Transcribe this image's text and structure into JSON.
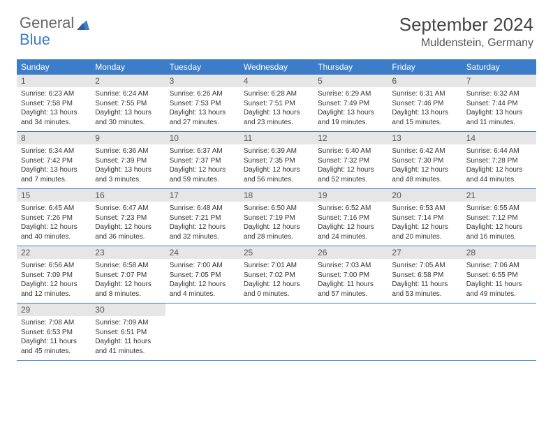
{
  "logo": {
    "text1": "General",
    "text2": "Blue"
  },
  "title": "September 2024",
  "location": "Muldenstein, Germany",
  "colors": {
    "header_bg": "#3d7cc9",
    "daynum_bg": "#e6e6e6",
    "week_border": "#3d7cc9",
    "logo_blue": "#3d7cc9"
  },
  "weekdays": [
    "Sunday",
    "Monday",
    "Tuesday",
    "Wednesday",
    "Thursday",
    "Friday",
    "Saturday"
  ],
  "weeks": [
    [
      {
        "num": "1",
        "sunrise": "Sunrise: 6:23 AM",
        "sunset": "Sunset: 7:58 PM",
        "daylight": "Daylight: 13 hours and 34 minutes."
      },
      {
        "num": "2",
        "sunrise": "Sunrise: 6:24 AM",
        "sunset": "Sunset: 7:55 PM",
        "daylight": "Daylight: 13 hours and 30 minutes."
      },
      {
        "num": "3",
        "sunrise": "Sunrise: 6:26 AM",
        "sunset": "Sunset: 7:53 PM",
        "daylight": "Daylight: 13 hours and 27 minutes."
      },
      {
        "num": "4",
        "sunrise": "Sunrise: 6:28 AM",
        "sunset": "Sunset: 7:51 PM",
        "daylight": "Daylight: 13 hours and 23 minutes."
      },
      {
        "num": "5",
        "sunrise": "Sunrise: 6:29 AM",
        "sunset": "Sunset: 7:49 PM",
        "daylight": "Daylight: 13 hours and 19 minutes."
      },
      {
        "num": "6",
        "sunrise": "Sunrise: 6:31 AM",
        "sunset": "Sunset: 7:46 PM",
        "daylight": "Daylight: 13 hours and 15 minutes."
      },
      {
        "num": "7",
        "sunrise": "Sunrise: 6:32 AM",
        "sunset": "Sunset: 7:44 PM",
        "daylight": "Daylight: 13 hours and 11 minutes."
      }
    ],
    [
      {
        "num": "8",
        "sunrise": "Sunrise: 6:34 AM",
        "sunset": "Sunset: 7:42 PM",
        "daylight": "Daylight: 13 hours and 7 minutes."
      },
      {
        "num": "9",
        "sunrise": "Sunrise: 6:36 AM",
        "sunset": "Sunset: 7:39 PM",
        "daylight": "Daylight: 13 hours and 3 minutes."
      },
      {
        "num": "10",
        "sunrise": "Sunrise: 6:37 AM",
        "sunset": "Sunset: 7:37 PM",
        "daylight": "Daylight: 12 hours and 59 minutes."
      },
      {
        "num": "11",
        "sunrise": "Sunrise: 6:39 AM",
        "sunset": "Sunset: 7:35 PM",
        "daylight": "Daylight: 12 hours and 56 minutes."
      },
      {
        "num": "12",
        "sunrise": "Sunrise: 6:40 AM",
        "sunset": "Sunset: 7:32 PM",
        "daylight": "Daylight: 12 hours and 52 minutes."
      },
      {
        "num": "13",
        "sunrise": "Sunrise: 6:42 AM",
        "sunset": "Sunset: 7:30 PM",
        "daylight": "Daylight: 12 hours and 48 minutes."
      },
      {
        "num": "14",
        "sunrise": "Sunrise: 6:44 AM",
        "sunset": "Sunset: 7:28 PM",
        "daylight": "Daylight: 12 hours and 44 minutes."
      }
    ],
    [
      {
        "num": "15",
        "sunrise": "Sunrise: 6:45 AM",
        "sunset": "Sunset: 7:26 PM",
        "daylight": "Daylight: 12 hours and 40 minutes."
      },
      {
        "num": "16",
        "sunrise": "Sunrise: 6:47 AM",
        "sunset": "Sunset: 7:23 PM",
        "daylight": "Daylight: 12 hours and 36 minutes."
      },
      {
        "num": "17",
        "sunrise": "Sunrise: 6:48 AM",
        "sunset": "Sunset: 7:21 PM",
        "daylight": "Daylight: 12 hours and 32 minutes."
      },
      {
        "num": "18",
        "sunrise": "Sunrise: 6:50 AM",
        "sunset": "Sunset: 7:19 PM",
        "daylight": "Daylight: 12 hours and 28 minutes."
      },
      {
        "num": "19",
        "sunrise": "Sunrise: 6:52 AM",
        "sunset": "Sunset: 7:16 PM",
        "daylight": "Daylight: 12 hours and 24 minutes."
      },
      {
        "num": "20",
        "sunrise": "Sunrise: 6:53 AM",
        "sunset": "Sunset: 7:14 PM",
        "daylight": "Daylight: 12 hours and 20 minutes."
      },
      {
        "num": "21",
        "sunrise": "Sunrise: 6:55 AM",
        "sunset": "Sunset: 7:12 PM",
        "daylight": "Daylight: 12 hours and 16 minutes."
      }
    ],
    [
      {
        "num": "22",
        "sunrise": "Sunrise: 6:56 AM",
        "sunset": "Sunset: 7:09 PM",
        "daylight": "Daylight: 12 hours and 12 minutes."
      },
      {
        "num": "23",
        "sunrise": "Sunrise: 6:58 AM",
        "sunset": "Sunset: 7:07 PM",
        "daylight": "Daylight: 12 hours and 8 minutes."
      },
      {
        "num": "24",
        "sunrise": "Sunrise: 7:00 AM",
        "sunset": "Sunset: 7:05 PM",
        "daylight": "Daylight: 12 hours and 4 minutes."
      },
      {
        "num": "25",
        "sunrise": "Sunrise: 7:01 AM",
        "sunset": "Sunset: 7:02 PM",
        "daylight": "Daylight: 12 hours and 0 minutes."
      },
      {
        "num": "26",
        "sunrise": "Sunrise: 7:03 AM",
        "sunset": "Sunset: 7:00 PM",
        "daylight": "Daylight: 11 hours and 57 minutes."
      },
      {
        "num": "27",
        "sunrise": "Sunrise: 7:05 AM",
        "sunset": "Sunset: 6:58 PM",
        "daylight": "Daylight: 11 hours and 53 minutes."
      },
      {
        "num": "28",
        "sunrise": "Sunrise: 7:06 AM",
        "sunset": "Sunset: 6:55 PM",
        "daylight": "Daylight: 11 hours and 49 minutes."
      }
    ],
    [
      {
        "num": "29",
        "sunrise": "Sunrise: 7:08 AM",
        "sunset": "Sunset: 6:53 PM",
        "daylight": "Daylight: 11 hours and 45 minutes."
      },
      {
        "num": "30",
        "sunrise": "Sunrise: 7:09 AM",
        "sunset": "Sunset: 6:51 PM",
        "daylight": "Daylight: 11 hours and 41 minutes."
      },
      null,
      null,
      null,
      null,
      null
    ]
  ]
}
